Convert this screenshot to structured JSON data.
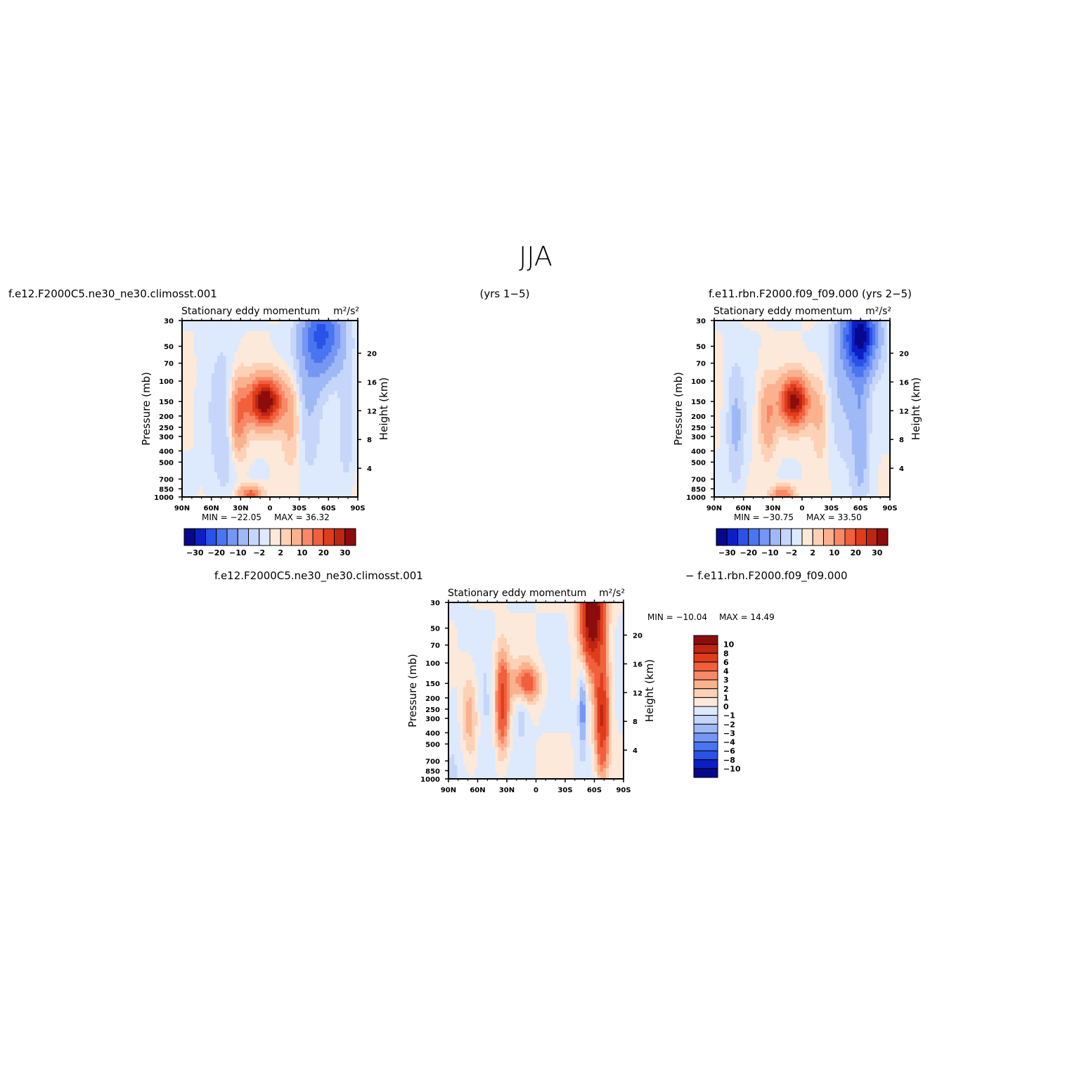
{
  "figure": {
    "title": "JJA",
    "caption_left": "f.e12.F2000C5.ne30_ne30.climosst.001",
    "caption_center": "(yrs  1−5)",
    "caption_right": "f.e11.rbn.F2000.f09_f09.000  (yrs  2−5)",
    "diff_caption_left": "f.e12.F2000C5.ne30_ne30.climosst.001",
    "diff_caption_right": "−  f.e11.rbn.F2000.f09_f09.000"
  },
  "colors": {
    "neg": [
      "#08088c",
      "#0c1fc4",
      "#2a52e8",
      "#4a75f0",
      "#7596f2",
      "#9fb8f6",
      "#c6d6fa",
      "#dde9fd"
    ],
    "pos": [
      "#fde9d9",
      "#fcd1b6",
      "#fab18e",
      "#f98966",
      "#f0603d",
      "#e03c1c",
      "#bc2612",
      "#8c0d0d"
    ]
  },
  "chart_data": [
    {
      "type": "heatmap",
      "title": "Stationary eddy momentum",
      "units": "m²/s²",
      "xlabel": "",
      "ylabel": "Pressure (mb)",
      "y2label": "Height (km)",
      "x_ticks": [
        "90N",
        "60N",
        "30N",
        "0",
        "30S",
        "60S",
        "90S"
      ],
      "y_ticks": [
        "30",
        "50",
        "70",
        "100",
        "150",
        "200",
        "250",
        "300",
        "400",
        "500",
        "700",
        "850",
        "1000"
      ],
      "y2_ticks": [
        "20",
        "16",
        "12",
        "8",
        "4"
      ],
      "xlim": [
        90,
        -90
      ],
      "ylim": [
        1000,
        30
      ],
      "y_scale": "log",
      "min_label": "MIN  =  −22.05",
      "max_label": "MAX  =    36.32",
      "min": -22.05,
      "max": 36.32,
      "colorbar_ticks": [
        "−30",
        "−20",
        "−10",
        "−2",
        "2",
        "10",
        "20",
        "30"
      ],
      "colorbar_levels": [
        -30,
        -25,
        -20,
        -15,
        -10,
        -5,
        -2,
        0,
        2,
        5,
        10,
        15,
        20,
        25,
        30
      ],
      "features": [
        {
          "lat": 5,
          "p": 150,
          "value": 36,
          "dlat": 12,
          "dlogp": 0.14
        },
        {
          "lat": 32,
          "p": 200,
          "value": 15,
          "dlat": 6,
          "dlogp": 0.22
        },
        {
          "lat": -55,
          "p": 40,
          "value": -20,
          "dlat": 14,
          "dlogp": 0.25
        },
        {
          "lat": -40,
          "p": 100,
          "value": -6,
          "dlat": 10,
          "dlogp": 0.5
        },
        {
          "lat": -22,
          "p": 220,
          "value": 7,
          "dlat": 7,
          "dlogp": 0.25
        },
        {
          "lat": 48,
          "p": 250,
          "value": -4,
          "dlat": 10,
          "dlogp": 0.5
        },
        {
          "lat": 20,
          "p": 950,
          "value": 18,
          "dlat": 8,
          "dlogp": 0.05
        },
        {
          "lat": -78,
          "p": 250,
          "value": -5,
          "dlat": 5,
          "dlogp": 0.3
        }
      ]
    },
    {
      "type": "heatmap",
      "title": "Stationary eddy momentum",
      "units": "m²/s²",
      "xlabel": "",
      "ylabel": "Pressure (mb)",
      "y2label": "Height (km)",
      "x_ticks": [
        "90N",
        "60N",
        "30N",
        "0",
        "30S",
        "60S",
        "90S"
      ],
      "y_ticks": [
        "30",
        "50",
        "70",
        "100",
        "150",
        "200",
        "250",
        "300",
        "400",
        "500",
        "700",
        "850",
        "1000"
      ],
      "y2_ticks": [
        "20",
        "16",
        "12",
        "8",
        "4"
      ],
      "xlim": [
        90,
        -90
      ],
      "ylim": [
        1000,
        30
      ],
      "y_scale": "log",
      "min_label": "MIN  =  −30.75",
      "max_label": "MAX  =    33.50",
      "min": -30.75,
      "max": 33.5,
      "colorbar_ticks": [
        "−30",
        "−20",
        "−10",
        "−2",
        "2",
        "10",
        "20",
        "30"
      ],
      "colorbar_levels": [
        -30,
        -25,
        -20,
        -15,
        -10,
        -5,
        -2,
        0,
        2,
        5,
        10,
        15,
        20,
        25,
        30
      ],
      "features": [
        {
          "lat": 8,
          "p": 150,
          "value": 33,
          "dlat": 10,
          "dlogp": 0.14
        },
        {
          "lat": 35,
          "p": 200,
          "value": 10,
          "dlat": 6,
          "dlogp": 0.22
        },
        {
          "lat": -60,
          "p": 40,
          "value": -30,
          "dlat": 12,
          "dlogp": 0.22
        },
        {
          "lat": -60,
          "p": 250,
          "value": -8,
          "dlat": 6,
          "dlogp": 0.45
        },
        {
          "lat": -45,
          "p": 100,
          "value": -6,
          "dlat": 12,
          "dlogp": 0.45
        },
        {
          "lat": 68,
          "p": 250,
          "value": -6,
          "dlat": 6,
          "dlogp": 0.35
        },
        {
          "lat": -18,
          "p": 200,
          "value": 6,
          "dlat": 6,
          "dlogp": 0.25
        },
        {
          "lat": 20,
          "p": 950,
          "value": 15,
          "dlat": 8,
          "dlogp": 0.05
        }
      ]
    },
    {
      "type": "heatmap",
      "title": "Stationary eddy momentum",
      "units": "m²/s²",
      "xlabel": "",
      "ylabel": "Pressure (mb)",
      "y2label": "Height (km)",
      "x_ticks": [
        "90N",
        "60N",
        "30N",
        "0",
        "30S",
        "60S",
        "90S"
      ],
      "y_ticks": [
        "30",
        "50",
        "70",
        "100",
        "150",
        "200",
        "250",
        "300",
        "400",
        "500",
        "700",
        "850",
        "1000"
      ],
      "y2_ticks": [
        "20",
        "16",
        "12",
        "8",
        "4"
      ],
      "xlim": [
        90,
        -90
      ],
      "ylim": [
        1000,
        30
      ],
      "y_scale": "log",
      "min_label": "MIN  =  −10.04",
      "max_label": "MAX  =    14.49",
      "min": -10.04,
      "max": 14.49,
      "colorbar_ticks": [
        "10",
        "8",
        "6",
        "4",
        "3",
        "2",
        "1",
        "0",
        "−1",
        "−2",
        "−3",
        "−4",
        "−6",
        "−8",
        "−10"
      ],
      "colorbar_levels": [
        -10,
        -8,
        -6,
        -4,
        -3,
        -2,
        -1,
        0,
        1,
        2,
        3,
        4,
        6,
        8,
        10
      ],
      "features": [
        {
          "lat": -58,
          "p": 35,
          "value": 14,
          "dlat": 8,
          "dlogp": 0.3
        },
        {
          "lat": -68,
          "p": 300,
          "value": 8,
          "dlat": 5,
          "dlogp": 0.35
        },
        {
          "lat": 35,
          "p": 220,
          "value": 7,
          "dlat": 5,
          "dlogp": 0.3
        },
        {
          "lat": 10,
          "p": 150,
          "value": 5,
          "dlat": 10,
          "dlogp": 0.12
        },
        {
          "lat": 68,
          "p": 300,
          "value": 4,
          "dlat": 7,
          "dlogp": 0.3
        },
        {
          "lat": -48,
          "p": 250,
          "value": -4,
          "dlat": 3,
          "dlogp": 0.25
        },
        {
          "lat": 15,
          "p": 250,
          "value": -2,
          "dlat": 5,
          "dlogp": 0.2
        },
        {
          "lat": 65,
          "p": 500,
          "value": -1.5,
          "dlat": 20,
          "dlogp": 0.5
        }
      ]
    }
  ]
}
